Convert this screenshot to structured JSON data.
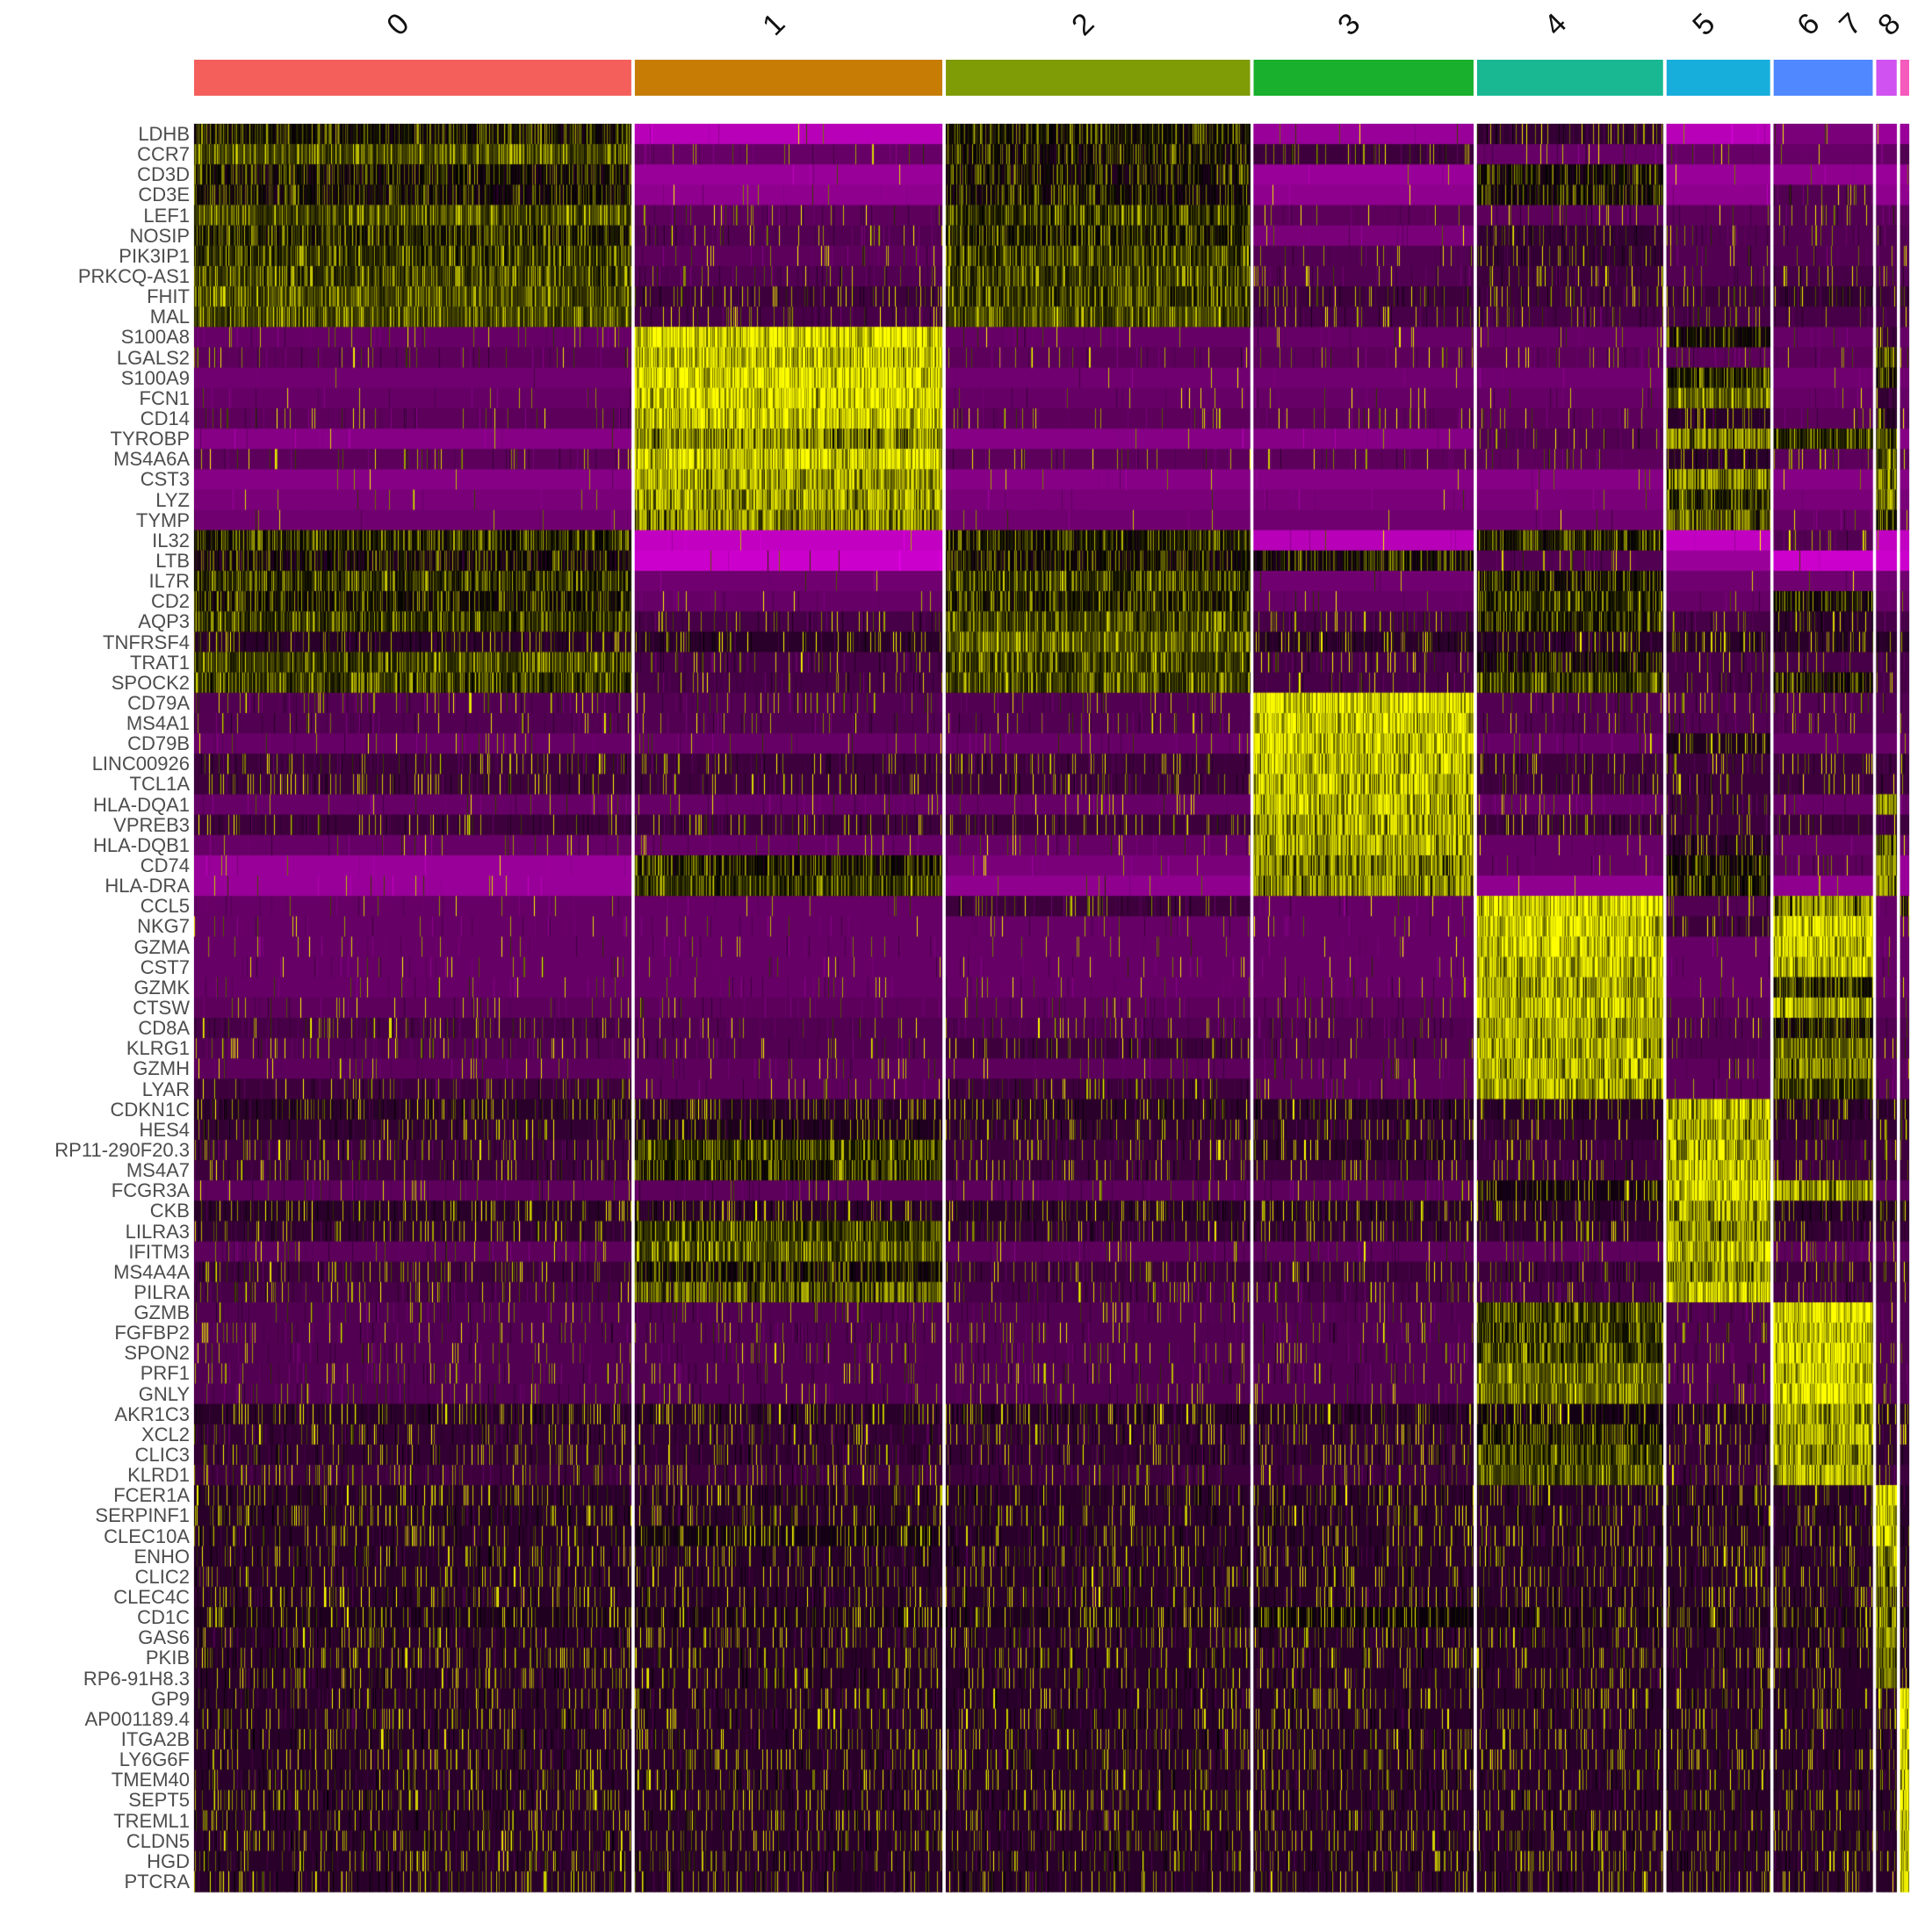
{
  "chart_data": {
    "type": "heatmap",
    "title": "",
    "color_scale": {
      "low": "#FF00FF",
      "mid": "#000000",
      "high": "#FFFF00",
      "range": [
        -2.5,
        2.5
      ]
    },
    "clusters": [
      {
        "label": "0",
        "color": "#F45F5C",
        "cells": 684
      },
      {
        "label": "1",
        "color": "#C77C06",
        "cells": 481
      },
      {
        "label": "2",
        "color": "#7F9B06",
        "cells": 476
      },
      {
        "label": "3",
        "color": "#18B02C",
        "cells": 344
      },
      {
        "label": "4",
        "color": "#19B893",
        "cells": 291
      },
      {
        "label": "5",
        "color": "#17AEDC",
        "cells": 162
      },
      {
        "label": "6",
        "color": "#4F88FF",
        "cells": 155
      },
      {
        "label": "7",
        "color": "#D052F0",
        "cells": 32
      },
      {
        "label": "8",
        "color": "#F55BBC",
        "cells": 14
      }
    ],
    "rows": [
      {
        "gene": "LDHB",
        "z": [
          0.3,
          -1.8,
          0.3,
          -1.5,
          -0.5,
          -1.8,
          -1.2,
          -1.5,
          -1.5
        ]
      },
      {
        "gene": "CCR7",
        "z": [
          0.8,
          -1.0,
          0.2,
          -0.6,
          -1.0,
          -1.0,
          -1.0,
          -1.0,
          -0.8
        ]
      },
      {
        "gene": "CD3D",
        "z": [
          0.2,
          -1.5,
          0.2,
          -1.5,
          0.2,
          -1.5,
          -1.4,
          -1.5,
          -1.5
        ]
      },
      {
        "gene": "CD3E",
        "z": [
          0.2,
          -1.4,
          0.2,
          -1.4,
          0.2,
          -1.4,
          -0.8,
          -1.4,
          -1.4
        ]
      },
      {
        "gene": "LEF1",
        "z": [
          0.8,
          -0.9,
          0.6,
          -0.9,
          -0.9,
          -0.9,
          -0.8,
          -0.9,
          -0.9
        ]
      },
      {
        "gene": "NOSIP",
        "z": [
          0.4,
          -0.8,
          0.4,
          -1.2,
          -0.5,
          -0.8,
          -0.8,
          -0.8,
          -0.8
        ]
      },
      {
        "gene": "PIK3IP1",
        "z": [
          0.6,
          -0.9,
          0.6,
          -0.8,
          -0.5,
          -0.8,
          -0.8,
          -0.8,
          -0.8
        ]
      },
      {
        "gene": "PRKCQ-AS1",
        "z": [
          0.7,
          -0.8,
          0.7,
          -0.8,
          -0.6,
          -0.8,
          -0.7,
          -0.8,
          -0.8
        ]
      },
      {
        "gene": "FHIT",
        "z": [
          0.8,
          -0.6,
          0.6,
          -0.6,
          -0.6,
          -0.6,
          -0.5,
          -0.6,
          -0.6
        ]
      },
      {
        "gene": "MAL",
        "z": [
          0.8,
          -0.7,
          0.8,
          -0.7,
          -0.7,
          -0.7,
          -0.7,
          -0.7,
          -0.7
        ]
      },
      {
        "gene": "S100A8",
        "z": [
          -1.0,
          2.4,
          -1.0,
          -1.0,
          -1.0,
          0.3,
          -1.0,
          -0.6,
          -1.0
        ]
      },
      {
        "gene": "LGALS2",
        "z": [
          -0.9,
          2.2,
          -0.9,
          -0.9,
          -0.9,
          -0.9,
          -0.9,
          1.2,
          -0.9
        ]
      },
      {
        "gene": "S100A9",
        "z": [
          -1.1,
          2.4,
          -1.1,
          -1.1,
          -1.1,
          0.5,
          -1.1,
          0.2,
          -1.1
        ]
      },
      {
        "gene": "FCN1",
        "z": [
          -1.0,
          2.3,
          -1.0,
          -1.0,
          -1.0,
          1.0,
          -1.0,
          -0.5,
          -1.0
        ]
      },
      {
        "gene": "CD14",
        "z": [
          -0.9,
          2.2,
          -0.9,
          -0.9,
          -0.9,
          -0.4,
          -0.9,
          -0.3,
          -0.9
        ]
      },
      {
        "gene": "TYROBP",
        "z": [
          -1.3,
          1.6,
          -1.3,
          -1.3,
          -0.8,
          1.4,
          0.6,
          0.6,
          -1.3
        ]
      },
      {
        "gene": "MS4A6A",
        "z": [
          -0.9,
          2.2,
          -0.9,
          -0.9,
          -0.9,
          -0.4,
          -0.9,
          0.8,
          -0.9
        ]
      },
      {
        "gene": "CST3",
        "z": [
          -1.3,
          1.8,
          -1.3,
          -1.3,
          -1.3,
          1.5,
          -1.3,
          1.6,
          -1.3
        ]
      },
      {
        "gene": "LYZ",
        "z": [
          -1.2,
          1.8,
          -1.2,
          -1.2,
          -1.2,
          0.5,
          -1.2,
          1.5,
          -1.2
        ]
      },
      {
        "gene": "TYMP",
        "z": [
          -1.1,
          1.6,
          -1.1,
          -1.1,
          -1.1,
          1.2,
          -1.0,
          0.5,
          -1.1
        ]
      },
      {
        "gene": "IL32",
        "z": [
          0.4,
          -1.9,
          0.4,
          -1.8,
          0.4,
          -1.9,
          -0.8,
          -1.9,
          -1.9
        ]
      },
      {
        "gene": "LTB",
        "z": [
          0.1,
          -2.0,
          0.2,
          0.2,
          -0.8,
          -1.5,
          -2.0,
          -2.0,
          -2.0
        ]
      },
      {
        "gene": "IL7R",
        "z": [
          0.5,
          -1.1,
          0.6,
          -1.1,
          0.3,
          -1.1,
          -1.1,
          -1.1,
          -1.1
        ]
      },
      {
        "gene": "CD2",
        "z": [
          0.3,
          -1.0,
          0.4,
          -1.0,
          0.5,
          -1.0,
          0.2,
          -1.0,
          -1.0
        ]
      },
      {
        "gene": "AQP3",
        "z": [
          0.6,
          -0.7,
          0.7,
          -0.7,
          0.4,
          -0.7,
          -0.4,
          -0.7,
          -0.7
        ]
      },
      {
        "gene": "TNFRSF4",
        "z": [
          -0.4,
          -0.4,
          0.9,
          -0.4,
          -0.4,
          -0.4,
          -0.4,
          -0.4,
          -0.4
        ]
      },
      {
        "gene": "TRAT1",
        "z": [
          0.7,
          -0.7,
          0.7,
          -0.7,
          0.1,
          -0.7,
          -0.7,
          -0.7,
          -0.7
        ]
      },
      {
        "gene": "SPOCK2",
        "z": [
          0.6,
          -0.7,
          0.7,
          -0.7,
          0.6,
          -0.7,
          0.2,
          -0.7,
          -0.7
        ]
      },
      {
        "gene": "CD79A",
        "z": [
          -0.8,
          -0.8,
          -0.8,
          2.4,
          -0.8,
          -0.8,
          -0.8,
          -0.8,
          -0.8
        ]
      },
      {
        "gene": "MS4A1",
        "z": [
          -0.8,
          -0.8,
          -0.8,
          2.3,
          -0.8,
          -0.8,
          -0.8,
          -0.8,
          -0.8
        ]
      },
      {
        "gene": "CD79B",
        "z": [
          -1.0,
          -1.0,
          -1.0,
          2.2,
          -1.0,
          -0.3,
          -1.0,
          -1.0,
          -1.0
        ]
      },
      {
        "gene": "LINC00926",
        "z": [
          -0.6,
          -0.6,
          -0.6,
          2.0,
          -0.6,
          -0.6,
          -0.6,
          -0.6,
          -0.6
        ]
      },
      {
        "gene": "TCL1A",
        "z": [
          -0.6,
          -0.6,
          -0.6,
          2.0,
          -0.6,
          -0.6,
          -0.6,
          -0.6,
          -0.6
        ]
      },
      {
        "gene": "HLA-DQA1",
        "z": [
          -1.0,
          -1.0,
          -1.0,
          2.0,
          -1.0,
          -0.6,
          -1.0,
          1.5,
          -1.0
        ]
      },
      {
        "gene": "VPREB3",
        "z": [
          -0.6,
          -0.6,
          -0.6,
          1.8,
          -0.6,
          -0.6,
          -0.6,
          -0.6,
          -0.6
        ]
      },
      {
        "gene": "HLA-DQB1",
        "z": [
          -1.0,
          -1.0,
          -1.0,
          1.8,
          -1.0,
          -0.4,
          -1.0,
          1.2,
          -1.0
        ]
      },
      {
        "gene": "CD74",
        "z": [
          -1.5,
          0.3,
          -1.2,
          1.5,
          -1.0,
          0.2,
          -0.9,
          1.4,
          -1.5
        ]
      },
      {
        "gene": "HLA-DRA",
        "z": [
          -1.5,
          0.6,
          -1.4,
          1.6,
          -1.4,
          0.3,
          -1.4,
          1.4,
          -1.5
        ]
      },
      {
        "gene": "CCL5",
        "z": [
          -1.0,
          -1.0,
          -0.6,
          -1.0,
          2.2,
          -0.8,
          1.6,
          -1.0,
          -0.2
        ]
      },
      {
        "gene": "NKG7",
        "z": [
          -1.0,
          -1.0,
          -1.0,
          -1.0,
          2.2,
          -0.6,
          2.4,
          -1.0,
          -1.0
        ]
      },
      {
        "gene": "GZMA",
        "z": [
          -1.0,
          -1.0,
          -1.0,
          -1.0,
          2.2,
          -1.0,
          2.2,
          -1.0,
          -1.0
        ]
      },
      {
        "gene": "CST7",
        "z": [
          -1.0,
          -1.0,
          -1.0,
          -1.0,
          2.0,
          -1.0,
          2.0,
          -1.0,
          -1.0
        ]
      },
      {
        "gene": "GZMK",
        "z": [
          -1.0,
          -1.0,
          -1.0,
          -1.0,
          1.8,
          -1.0,
          0.4,
          -1.0,
          -1.0
        ]
      },
      {
        "gene": "CTSW",
        "z": [
          -0.9,
          -0.9,
          -0.9,
          -0.9,
          2.0,
          -0.9,
          1.8,
          -0.9,
          -0.9
        ]
      },
      {
        "gene": "CD8A",
        "z": [
          -0.7,
          -0.8,
          -0.8,
          -0.8,
          1.8,
          -0.8,
          0.3,
          -0.8,
          -0.8
        ]
      },
      {
        "gene": "KLRG1",
        "z": [
          -0.8,
          -0.8,
          -0.6,
          -0.8,
          1.9,
          -0.8,
          1.0,
          -0.8,
          -0.8
        ]
      },
      {
        "gene": "GZMH",
        "z": [
          -0.9,
          -0.9,
          -0.9,
          -0.9,
          1.9,
          -0.9,
          1.5,
          -0.9,
          -0.9
        ]
      },
      {
        "gene": "LYAR",
        "z": [
          -0.6,
          -0.9,
          -0.6,
          -0.9,
          1.8,
          -0.9,
          0.6,
          -0.9,
          -0.9
        ]
      },
      {
        "gene": "CDKN1C",
        "z": [
          -0.4,
          -0.4,
          -0.4,
          -0.4,
          -0.4,
          2.0,
          -0.4,
          -0.4,
          -0.4
        ]
      },
      {
        "gene": "HES4",
        "z": [
          -0.5,
          -0.3,
          -0.5,
          -0.5,
          -0.5,
          1.8,
          -0.5,
          -0.5,
          -0.5
        ]
      },
      {
        "gene": "RP11-290F20.3",
        "z": [
          -0.6,
          0.6,
          -0.6,
          -0.4,
          -0.6,
          2.0,
          -0.6,
          -0.6,
          -0.6
        ]
      },
      {
        "gene": "MS4A7",
        "z": [
          -0.6,
          0.4,
          -0.6,
          -0.6,
          -0.6,
          2.0,
          -0.6,
          -0.6,
          -0.6
        ]
      },
      {
        "gene": "FCGR3A",
        "z": [
          -0.9,
          -0.9,
          -0.9,
          -0.9,
          -0.2,
          2.2,
          1.8,
          -0.9,
          -0.9
        ]
      },
      {
        "gene": "CKB",
        "z": [
          -0.4,
          -0.4,
          -0.4,
          -0.4,
          -0.4,
          1.8,
          -0.4,
          -0.4,
          -0.4
        ]
      },
      {
        "gene": "LILRA3",
        "z": [
          -0.5,
          0.6,
          -0.5,
          -0.5,
          -0.5,
          1.6,
          -0.5,
          -0.5,
          -0.5
        ]
      },
      {
        "gene": "IFITM3",
        "z": [
          -0.9,
          0.8,
          -0.9,
          -0.9,
          -0.9,
          2.0,
          -0.9,
          -0.9,
          -0.9
        ]
      },
      {
        "gene": "MS4A4A",
        "z": [
          -0.6,
          0.2,
          -0.6,
          -0.6,
          -0.6,
          1.6,
          -0.6,
          -0.6,
          -0.6
        ]
      },
      {
        "gene": "PILRA",
        "z": [
          -0.7,
          1.2,
          -0.7,
          -0.7,
          -0.7,
          2.0,
          -0.7,
          -0.7,
          -0.7
        ]
      },
      {
        "gene": "GZMB",
        "z": [
          -0.8,
          -0.8,
          -0.8,
          -0.8,
          0.6,
          -0.8,
          2.4,
          -0.8,
          -0.8
        ]
      },
      {
        "gene": "FGFBP2",
        "z": [
          -0.8,
          -0.8,
          -0.8,
          -0.8,
          0.6,
          -0.8,
          2.3,
          -0.8,
          -0.8
        ]
      },
      {
        "gene": "SPON2",
        "z": [
          -0.8,
          -0.8,
          -0.8,
          -0.8,
          0.6,
          -0.8,
          2.3,
          -0.8,
          -0.8
        ]
      },
      {
        "gene": "PRF1",
        "z": [
          -0.8,
          -0.8,
          -0.8,
          -0.8,
          1.0,
          -0.8,
          2.3,
          -0.8,
          -0.8
        ]
      },
      {
        "gene": "GNLY",
        "z": [
          -0.8,
          -0.8,
          -0.8,
          -0.8,
          1.0,
          -0.8,
          2.5,
          -0.8,
          -0.8
        ]
      },
      {
        "gene": "AKR1C3",
        "z": [
          -0.4,
          -0.4,
          -0.4,
          -0.4,
          -0.2,
          -0.4,
          1.8,
          -0.4,
          -0.4
        ]
      },
      {
        "gene": "XCL2",
        "z": [
          -0.5,
          -0.5,
          -0.5,
          -0.5,
          0.3,
          -0.5,
          1.8,
          -0.5,
          -0.5
        ]
      },
      {
        "gene": "CLIC3",
        "z": [
          -0.5,
          -0.5,
          -0.5,
          -0.5,
          0.6,
          -0.5,
          1.8,
          -0.5,
          -0.5
        ]
      },
      {
        "gene": "KLRD1",
        "z": [
          -0.6,
          -0.6,
          -0.6,
          -0.6,
          0.8,
          -0.6,
          1.8,
          -0.6,
          -0.6
        ]
      },
      {
        "gene": "FCER1A",
        "z": [
          -0.4,
          -0.4,
          -0.4,
          -0.4,
          -0.4,
          -0.4,
          -0.4,
          2.4,
          -0.4
        ]
      },
      {
        "gene": "SERPINF1",
        "z": [
          -0.4,
          -0.4,
          -0.4,
          -0.4,
          -0.4,
          -0.4,
          -0.4,
          2.0,
          -0.4
        ]
      },
      {
        "gene": "CLEC10A",
        "z": [
          -0.4,
          -0.2,
          -0.4,
          -0.4,
          -0.4,
          -0.4,
          -0.4,
          2.2,
          -0.4
        ]
      },
      {
        "gene": "ENHO",
        "z": [
          -0.4,
          -0.4,
          -0.4,
          -0.4,
          -0.4,
          -0.4,
          -0.4,
          1.8,
          -0.4
        ]
      },
      {
        "gene": "CLIC2",
        "z": [
          -0.4,
          -0.4,
          -0.4,
          -0.4,
          -0.4,
          -0.4,
          -0.4,
          1.5,
          -0.4
        ]
      },
      {
        "gene": "CLEC4C",
        "z": [
          -0.4,
          -0.4,
          -0.4,
          -0.4,
          -0.4,
          -0.4,
          -0.4,
          1.2,
          -0.4
        ]
      },
      {
        "gene": "CD1C",
        "z": [
          -0.3,
          -0.3,
          -0.3,
          -0.1,
          -0.3,
          -0.3,
          -0.3,
          1.6,
          -0.3
        ]
      },
      {
        "gene": "GAS6",
        "z": [
          -0.4,
          -0.4,
          -0.4,
          -0.4,
          -0.4,
          -0.4,
          -0.4,
          1.4,
          -0.4
        ]
      },
      {
        "gene": "PKIB",
        "z": [
          -0.4,
          -0.4,
          -0.4,
          -0.4,
          -0.4,
          -0.4,
          -0.4,
          1.3,
          -0.4
        ]
      },
      {
        "gene": "RP6-91H8.3",
        "z": [
          -0.4,
          -0.4,
          -0.4,
          -0.4,
          -0.4,
          -0.4,
          -0.4,
          1.2,
          -0.4
        ]
      },
      {
        "gene": "GP9",
        "z": [
          -0.4,
          -0.4,
          -0.4,
          -0.4,
          -0.4,
          -0.4,
          -0.4,
          -0.4,
          2.4
        ]
      },
      {
        "gene": "AP001189.4",
        "z": [
          -0.4,
          -0.4,
          -0.4,
          -0.4,
          -0.4,
          -0.4,
          -0.4,
          -0.4,
          2.4
        ]
      },
      {
        "gene": "ITGA2B",
        "z": [
          -0.4,
          -0.4,
          -0.4,
          -0.4,
          -0.4,
          -0.4,
          -0.4,
          -0.4,
          2.3
        ]
      },
      {
        "gene": "LY6G6F",
        "z": [
          -0.4,
          -0.4,
          -0.4,
          -0.4,
          -0.4,
          -0.4,
          -0.4,
          -0.4,
          2.2
        ]
      },
      {
        "gene": "TMEM40",
        "z": [
          -0.4,
          -0.4,
          -0.4,
          -0.4,
          -0.4,
          -0.4,
          -0.4,
          -0.4,
          2.2
        ]
      },
      {
        "gene": "SEPT5",
        "z": [
          -0.4,
          -0.4,
          -0.4,
          -0.4,
          -0.4,
          -0.4,
          -0.4,
          -0.4,
          2.2
        ]
      },
      {
        "gene": "TREML1",
        "z": [
          -0.4,
          -0.4,
          -0.4,
          -0.4,
          -0.4,
          -0.4,
          -0.4,
          -0.4,
          2.0
        ]
      },
      {
        "gene": "CLDN5",
        "z": [
          -0.4,
          -0.4,
          -0.4,
          -0.4,
          -0.4,
          -0.4,
          -0.4,
          -0.4,
          2.0
        ]
      },
      {
        "gene": "HGD",
        "z": [
          -0.4,
          -0.4,
          -0.4,
          -0.4,
          -0.4,
          -0.4,
          -0.4,
          -0.4,
          2.2
        ]
      },
      {
        "gene": "PTCRA",
        "z": [
          -0.4,
          -0.4,
          -0.4,
          -0.4,
          -0.4,
          -0.4,
          -0.4,
          -0.4,
          2.4
        ]
      }
    ]
  }
}
